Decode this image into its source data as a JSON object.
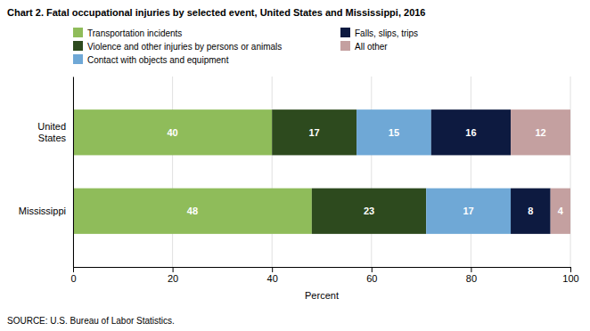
{
  "chart_data": {
    "type": "bar",
    "orientation": "horizontal",
    "stacked": true,
    "data_labels": true,
    "title": "Chart 2.  Fatal occupational injuries by selected event, United States and Mississippi, 2016",
    "categories": [
      "United\nStates",
      "Mississippi"
    ],
    "series": [
      {
        "name": "Transportation incidents",
        "color": "#8fbc5a",
        "values": [
          40,
          48
        ]
      },
      {
        "name": "Violence and other injuries by persons or animals",
        "color": "#2d4a1e",
        "values": [
          17,
          23
        ]
      },
      {
        "name": "Contact with objects and equipment",
        "color": "#6fa8d6",
        "values": [
          15,
          17
        ]
      },
      {
        "name": "Falls, slips, trips",
        "color": "#0d1a40",
        "values": [
          16,
          8
        ]
      },
      {
        "name": "All other",
        "color": "#c4a0a0",
        "values": [
          12,
          4
        ]
      }
    ],
    "xlabel": "Percent",
    "xlim": [
      0,
      100
    ],
    "xticks": [
      0,
      20,
      40,
      60,
      80,
      100
    ],
    "grid": true,
    "legend": "top",
    "annotations": [
      "SOURCE: U.S. Bureau of Labor Statistics."
    ]
  }
}
